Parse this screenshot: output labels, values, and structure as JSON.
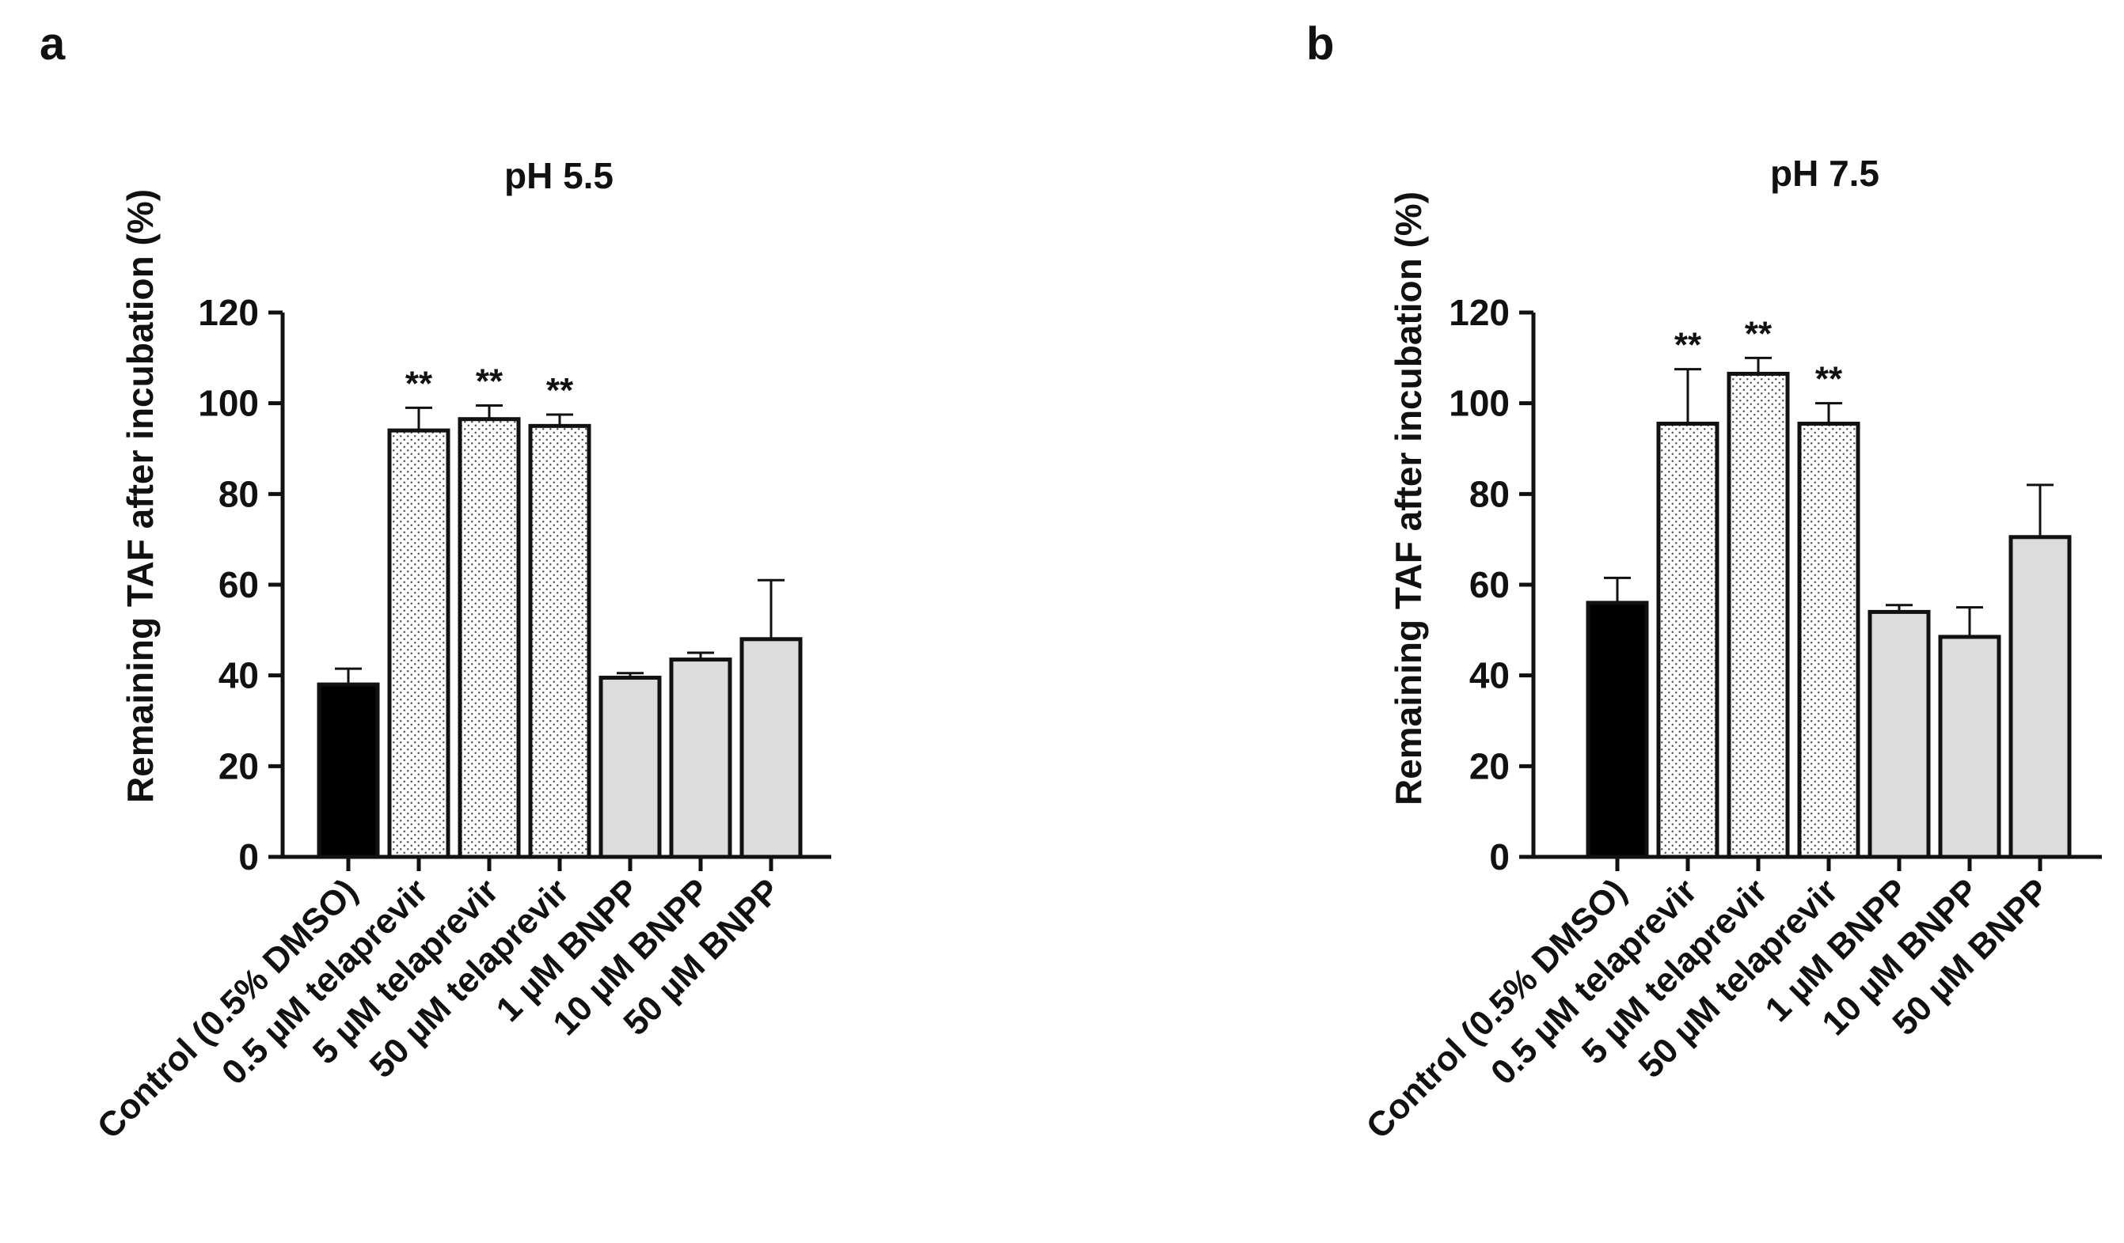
{
  "palette": {
    "ink": "#111111",
    "control": "#000000",
    "telaprevir_pattern_bg": "#ffffff",
    "telaprevir_pattern_dot": "#555555",
    "bnpp": "#dcdcdc"
  },
  "chart_data": [
    {
      "panel_label": "a",
      "type": "bar",
      "title": "pH 5.5",
      "xlabel": "",
      "ylabel": "Remaining TAF after incubation (%)",
      "ylim": [
        0,
        120
      ],
      "yticks": [
        "0",
        "20",
        "40",
        "60",
        "80",
        "100",
        "120"
      ],
      "grid": false,
      "categories": [
        "Control (0.5% DMSO)",
        "0.5 µM telaprevir",
        "5 µM telaprevir",
        "50 µM telaprevir",
        "1 µM BNPP",
        "10 µM BNPP",
        "50 µM BNPP"
      ],
      "values": [
        38,
        94,
        96.5,
        95,
        39.5,
        43.5,
        48
      ],
      "error_upper": [
        3.5,
        5,
        3,
        2.5,
        1,
        1.5,
        13
      ],
      "fill": [
        "control",
        "telaprevir",
        "telaprevir",
        "telaprevir",
        "bnpp",
        "bnpp",
        "bnpp"
      ],
      "annotations": [
        "",
        "**",
        "**",
        "**",
        "",
        "",
        ""
      ]
    },
    {
      "panel_label": "b",
      "type": "bar",
      "title": "pH 7.5",
      "xlabel": "",
      "ylabel": "Remaining TAF after incubation (%)",
      "ylim": [
        0,
        120
      ],
      "yticks": [
        "0",
        "20",
        "40",
        "60",
        "80",
        "100",
        "120"
      ],
      "grid": false,
      "categories": [
        "Control (0.5% DMSO)",
        "0.5 µM telaprevir",
        "5 µM telaprevir",
        "50 µM telaprevir",
        "1 µM BNPP",
        "10 µM BNPP",
        "50 µM BNPP"
      ],
      "values": [
        56,
        95.5,
        106.5,
        95.5,
        54,
        48.5,
        70.5
      ],
      "error_upper": [
        5.5,
        12,
        3.5,
        4.5,
        1.5,
        6.5,
        11.5
      ],
      "fill": [
        "control",
        "telaprevir",
        "telaprevir",
        "telaprevir",
        "bnpp",
        "bnpp",
        "bnpp"
      ],
      "annotations": [
        "",
        "**",
        "**",
        "**",
        "",
        "",
        ""
      ]
    }
  ]
}
